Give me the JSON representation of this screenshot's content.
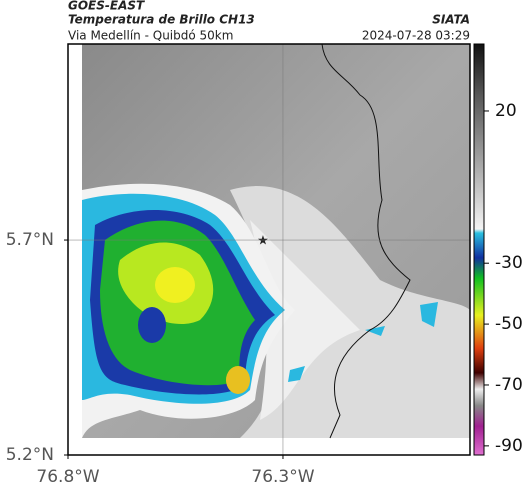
{
  "chart_data": {
    "type": "map",
    "title": "GOES-EAST",
    "subtitle": "Temperatura de Brillo CH13",
    "caption": "Via Medellín - Quibdó 50km",
    "source": "SIATA",
    "timestamp": "2024-07-28 03:29",
    "xlim": [
      -76.8,
      -75.865
    ],
    "ylim": [
      5.2,
      6.156
    ],
    "xticks": [
      {
        "value": -76.8,
        "label": "76.8°W"
      },
      {
        "value": -76.3,
        "label": "76.3°W"
      }
    ],
    "yticks": [
      {
        "value": 5.2,
        "label": "5.2°N"
      },
      {
        "value": 5.7,
        "label": "5.7°N"
      }
    ],
    "clim": [
      -93,
      42
    ],
    "cticks": [
      20,
      -30,
      -50,
      -70,
      -90
    ],
    "grid": true
  }
}
